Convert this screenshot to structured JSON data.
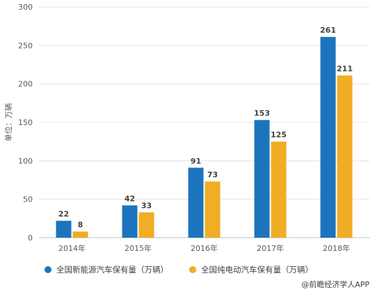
{
  "chart_data": {
    "type": "bar",
    "categories": [
      "2014年",
      "2015年",
      "2016年",
      "2017年",
      "2018年"
    ],
    "series": [
      {
        "name": "全国新能源汽车保有量（万辆）",
        "values": [
          22,
          42,
          91,
          153,
          261
        ],
        "color": "#1c75bc"
      },
      {
        "name": "全国纯电动汽车保有量（万辆）",
        "values": [
          8,
          33,
          73,
          125,
          211
        ],
        "color": "#f0ad25"
      }
    ],
    "ylabel": "单位：万辆",
    "ylim": [
      0,
      300
    ],
    "yticks": [
      0,
      50,
      100,
      150,
      200,
      250,
      300
    ],
    "grid": true,
    "legend_position": "bottom"
  },
  "source": "@前瞻经济学人APP"
}
